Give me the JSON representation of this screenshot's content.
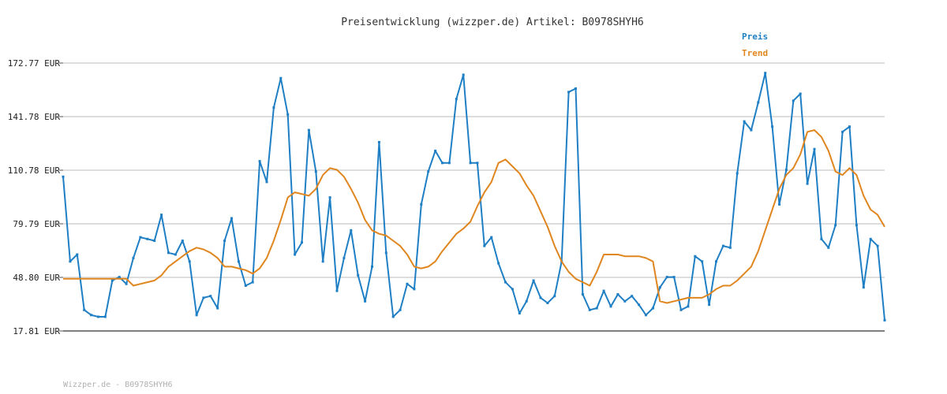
{
  "chart_data": {
    "type": "line",
    "title": "Preisentwicklung (wizzper.de) Artikel: B0978SHYH6",
    "footer": "Wizzper.de - B0978SHYH6",
    "ylim": [
      17.81,
      172.77
    ],
    "yticks": [
      "17.81 EUR",
      "48.80 EUR",
      "79.79 EUR",
      "110.78 EUR",
      "141.78 EUR",
      "172.77 EUR"
    ],
    "ytick_values": [
      17.81,
      48.8,
      79.79,
      110.78,
      141.78,
      172.77
    ],
    "grid": true,
    "legend_position": "top-right",
    "series": [
      {
        "name": "Preis",
        "color": "#1f7fc4",
        "values": [
          107,
          58,
          62,
          30,
          27,
          26,
          26,
          47,
          49,
          45,
          60,
          72,
          71,
          70,
          85,
          63,
          62,
          70,
          58,
          27,
          37,
          38,
          31,
          70,
          83,
          58,
          44,
          46,
          116,
          104,
          147,
          164,
          143,
          62,
          69,
          134,
          110,
          58,
          95,
          41,
          60,
          76,
          50,
          35,
          55,
          127,
          63,
          26,
          30,
          45,
          42,
          91,
          110,
          122,
          115,
          115,
          152,
          166,
          115,
          115,
          67,
          72,
          57,
          46,
          42,
          28,
          35,
          47,
          37,
          34,
          38,
          58,
          156,
          158,
          39,
          30,
          31,
          41,
          32,
          39,
          35,
          38,
          33,
          27,
          31,
          43,
          49,
          49,
          30,
          32,
          61,
          58,
          33,
          58,
          67,
          66,
          109,
          139,
          134,
          150,
          167,
          136,
          91,
          111,
          151,
          155,
          103,
          123,
          71,
          66,
          79,
          133,
          136,
          79,
          43,
          71,
          67,
          24
        ]
      },
      {
        "name": "Trend",
        "color": "#e0861f",
        "values": [
          48,
          48,
          48,
          48,
          48,
          48,
          48,
          48,
          48,
          48,
          44,
          45,
          46,
          47,
          50,
          55,
          58,
          61,
          64,
          66,
          65,
          63,
          60,
          55,
          55,
          54,
          53,
          51,
          54,
          60,
          70,
          82,
          95,
          98,
          97,
          96,
          100,
          108,
          112,
          111,
          107,
          100,
          92,
          82,
          76,
          74,
          73,
          70,
          67,
          62,
          55,
          54,
          55,
          58,
          64,
          69,
          74,
          77,
          81,
          90,
          98,
          104,
          115,
          117,
          113,
          109,
          102,
          96,
          87,
          78,
          67,
          58,
          52,
          48,
          46,
          44,
          52,
          62,
          62,
          62,
          61,
          61,
          61,
          60,
          58,
          35,
          34,
          35,
          36,
          37,
          37,
          37,
          39,
          42,
          44,
          44,
          47,
          51,
          55,
          64,
          76,
          88,
          100,
          108,
          112,
          120,
          133,
          134,
          130,
          122,
          110,
          108,
          112,
          108,
          96,
          88,
          85,
          78
        ]
      }
    ]
  }
}
